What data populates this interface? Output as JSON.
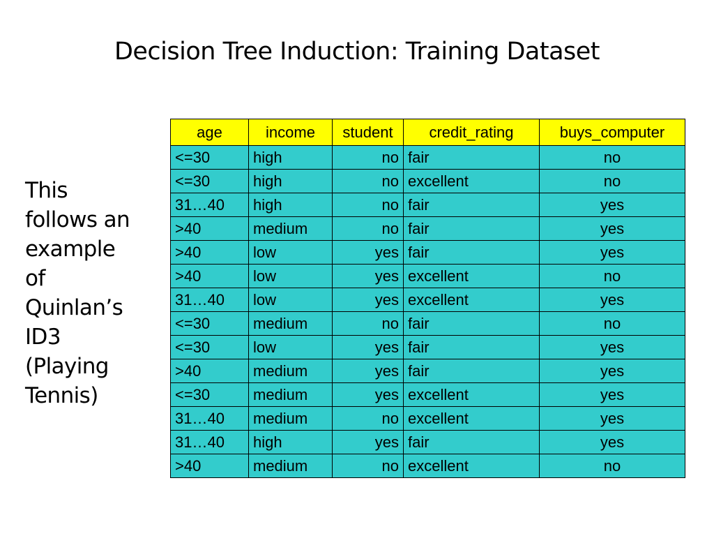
{
  "slide": {
    "title": "Decision Tree Induction: Training Dataset",
    "side_text_lines": [
      "This",
      "follows an",
      "example",
      "of",
      "Quinlan’s",
      "ID3",
      "(Playing",
      "Tennis)"
    ]
  },
  "table": {
    "headers": [
      "age",
      "income",
      "student",
      "credit_rating",
      "buys_computer"
    ],
    "rows": [
      [
        "<=30",
        "high",
        "no",
        "fair",
        "no"
      ],
      [
        "<=30",
        "high",
        "no",
        "excellent",
        "no"
      ],
      [
        "31…40",
        "high",
        "no",
        "fair",
        "yes"
      ],
      [
        ">40",
        "medium",
        "no",
        "fair",
        "yes"
      ],
      [
        ">40",
        "low",
        "yes",
        "fair",
        "yes"
      ],
      [
        ">40",
        "low",
        "yes",
        "excellent",
        "no"
      ],
      [
        "31…40",
        "low",
        "yes",
        "excellent",
        "yes"
      ],
      [
        "<=30",
        "medium",
        "no",
        "fair",
        "no"
      ],
      [
        "<=30",
        "low",
        "yes",
        "fair",
        "yes"
      ],
      [
        ">40",
        "medium",
        "yes",
        "fair",
        "yes"
      ],
      [
        "<=30",
        "medium",
        "yes",
        "excellent",
        "yes"
      ],
      [
        "31…40",
        "medium",
        "no",
        "excellent",
        "yes"
      ],
      [
        "31…40",
        "high",
        "yes",
        "fair",
        "yes"
      ],
      [
        ">40",
        "medium",
        "no",
        "excellent",
        "no"
      ]
    ]
  },
  "colors": {
    "header_bg": "#ffff00",
    "body_bg": "#33cccc",
    "border": "#000000"
  }
}
